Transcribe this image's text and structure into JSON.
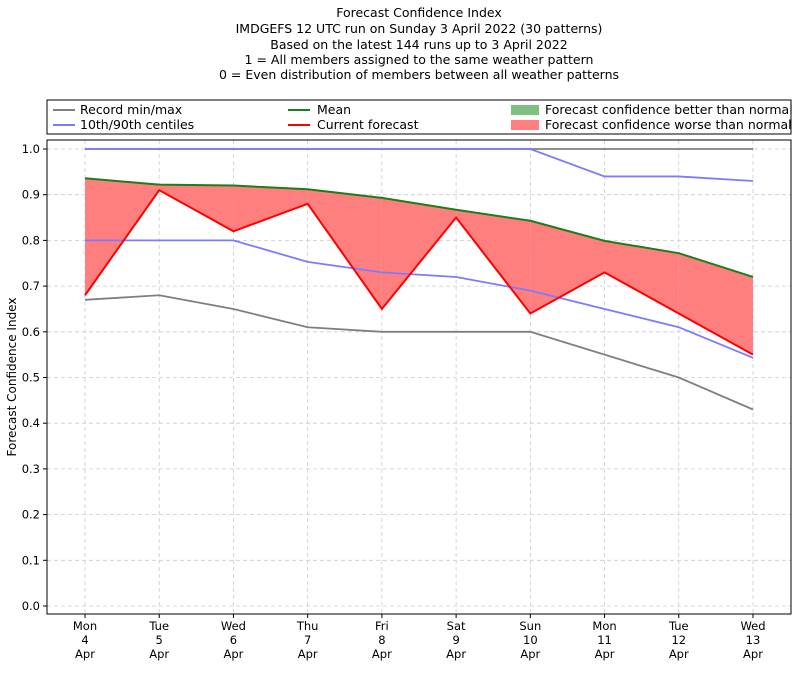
{
  "chart_data": {
    "type": "line",
    "title_lines": [
      "Forecast Confidence Index",
      "IMDGEFS 12 UTC run on Sunday 3 April 2022 (30 patterns)",
      "Based on the latest 144 runs up to 3 April 2022",
      "1 = All members assigned to the same weather pattern",
      "0 = Even distribution of members between all weather patterns"
    ],
    "ylabel": "Forecast Confidence Index",
    "xlabel": "",
    "ylim": [
      0.0,
      1.0
    ],
    "y_ticks": [
      "0.0",
      "0.1",
      "0.2",
      "0.3",
      "0.4",
      "0.5",
      "0.6",
      "0.7",
      "0.8",
      "0.9",
      "1.0"
    ],
    "grid": true,
    "categories": [
      [
        "Mon",
        "4",
        "Apr"
      ],
      [
        "Tue",
        "5",
        "Apr"
      ],
      [
        "Wed",
        "6",
        "Apr"
      ],
      [
        "Thu",
        "7",
        "Apr"
      ],
      [
        "Fri",
        "8",
        "Apr"
      ],
      [
        "Sat",
        "9",
        "Apr"
      ],
      [
        "Sun",
        "10",
        "Apr"
      ],
      [
        "Mon",
        "11",
        "Apr"
      ],
      [
        "Tue",
        "12",
        "Apr"
      ],
      [
        "Wed",
        "13",
        "Apr"
      ]
    ],
    "series": [
      {
        "name": "Record max",
        "color": "#7f7f7f",
        "values": [
          1.0,
          1.0,
          1.0,
          1.0,
          1.0,
          1.0,
          1.0,
          1.0,
          1.0,
          1.0
        ]
      },
      {
        "name": "Record min",
        "color": "#7f7f7f",
        "values": [
          0.67,
          0.68,
          0.65,
          0.61,
          0.6,
          0.6,
          0.6,
          0.55,
          0.5,
          0.43
        ]
      },
      {
        "name": "90th centile",
        "color": "#7b7bff",
        "values": [
          1.0,
          1.0,
          1.0,
          1.0,
          1.0,
          1.0,
          1.0,
          0.94,
          0.94,
          0.93
        ]
      },
      {
        "name": "10th centile",
        "color": "#7b7bff",
        "values": [
          0.8,
          0.8,
          0.8,
          0.753,
          0.73,
          0.72,
          0.69,
          0.65,
          0.61,
          0.543
        ]
      },
      {
        "name": "Mean",
        "color": "#1a7f1a",
        "values": [
          0.936,
          0.922,
          0.92,
          0.912,
          0.893,
          0.867,
          0.843,
          0.799,
          0.772,
          0.72
        ]
      },
      {
        "name": "Current forecast",
        "color": "#ff0000",
        "values": [
          0.68,
          0.91,
          0.82,
          0.88,
          0.65,
          0.85,
          0.64,
          0.73,
          0.64,
          0.55
        ]
      }
    ],
    "fill_better_color": "#7fbf7f",
    "fill_worse_color": "#ff7f7f",
    "legend": {
      "placement": "top",
      "entries": [
        {
          "label": "Record min/max",
          "color": "#7f7f7f",
          "kind": "line"
        },
        {
          "label": "10th/90th centiles",
          "color": "#7b7bff",
          "kind": "line"
        },
        {
          "label": "Mean",
          "color": "#1a7f1a",
          "kind": "line"
        },
        {
          "label": "Current forecast",
          "color": "#ff0000",
          "kind": "line"
        },
        {
          "label": "Forecast confidence better than normal",
          "color": "#7fbf7f",
          "kind": "patch"
        },
        {
          "label": "Forecast confidence worse than normal",
          "color": "#ff7f7f",
          "kind": "patch"
        }
      ]
    }
  }
}
